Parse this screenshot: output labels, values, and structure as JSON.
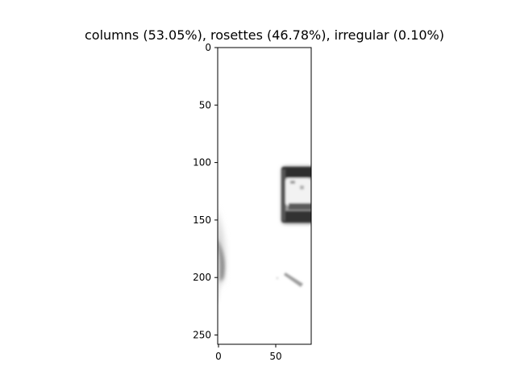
{
  "figure": {
    "title": "columns (53.05%), rosettes (46.78%), irregular (0.10%)"
  },
  "axes": {
    "y_ticks": [
      "0",
      "50",
      "100",
      "150",
      "200",
      "250"
    ],
    "x_ticks": [
      "0",
      "50"
    ]
  },
  "image": {
    "colormap": "grayscale",
    "background": "#ffffff",
    "x_range": [
      0,
      80
    ],
    "y_range": [
      0,
      258
    ]
  },
  "colors": {
    "axis": "#000000",
    "ink_dark": "#2b2b2b",
    "ink_mid": "#6f6f6f",
    "ink_light": "#cfcfcf"
  }
}
